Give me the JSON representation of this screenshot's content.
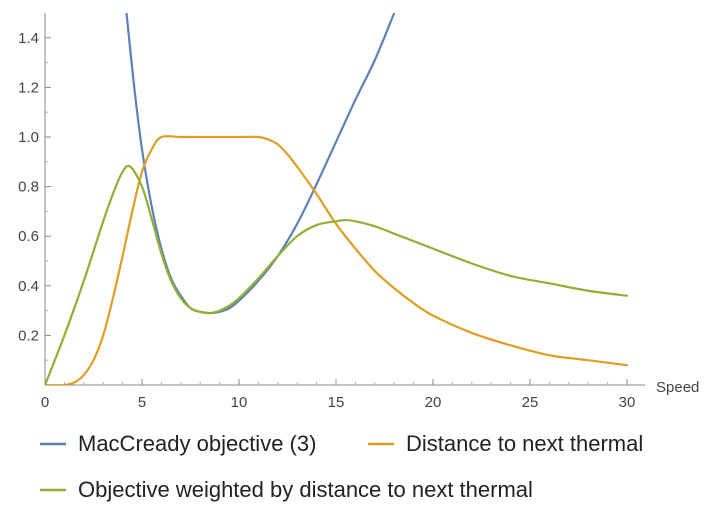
{
  "chart_data": {
    "type": "line",
    "title": "",
    "xlabel": "Speed",
    "ylabel": "",
    "xlim": [
      0,
      30
    ],
    "ylim": [
      0,
      1.5
    ],
    "x_ticks": [
      "0",
      "5",
      "10",
      "15",
      "20",
      "25",
      "30"
    ],
    "y_ticks": [
      "0.2",
      "0.4",
      "0.6",
      "0.8",
      "1.0",
      "1.2",
      "1.4"
    ],
    "grid": false,
    "legend_position": "bottom",
    "series": [
      {
        "name": "MacCready objective (3)",
        "color": "#5e81b5",
        "x": [
          4.2,
          4.6,
          5.0,
          5.5,
          6.0,
          6.5,
          7.0,
          7.5,
          8.0,
          8.5,
          9.0,
          9.5,
          10.0,
          11.0,
          12.0,
          13.0,
          14.0,
          15.0,
          16.0,
          17.0,
          18.0
        ],
        "y": [
          1.5,
          1.2,
          0.95,
          0.72,
          0.55,
          0.43,
          0.36,
          0.31,
          0.295,
          0.29,
          0.295,
          0.31,
          0.34,
          0.42,
          0.52,
          0.65,
          0.81,
          0.98,
          1.15,
          1.31,
          1.5
        ]
      },
      {
        "name": "Distance to next thermal",
        "color": "#e19c24",
        "x": [
          0,
          1,
          1.5,
          2,
          2.5,
          3,
          3.5,
          4,
          4.5,
          5,
          5.5,
          6,
          7,
          8,
          9,
          10,
          11,
          11.5,
          12,
          12.5,
          13,
          14,
          15,
          16,
          17,
          18,
          19,
          20,
          22,
          24,
          26,
          28,
          30
        ],
        "y": [
          0,
          0.0,
          0.01,
          0.04,
          0.1,
          0.2,
          0.35,
          0.52,
          0.7,
          0.86,
          0.95,
          1.0,
          1.0,
          1.0,
          1.0,
          1.0,
          1.0,
          0.99,
          0.97,
          0.93,
          0.88,
          0.77,
          0.65,
          0.55,
          0.46,
          0.39,
          0.33,
          0.28,
          0.21,
          0.16,
          0.12,
          0.1,
          0.08
        ]
      },
      {
        "name": "Objective weighted by distance to next thermal",
        "color": "#8fb032",
        "x": [
          0,
          1,
          2,
          3,
          3.5,
          4,
          4.4,
          5,
          5.5,
          6,
          6.5,
          7,
          7.5,
          8,
          8.5,
          9,
          9.5,
          10,
          11,
          12,
          13,
          14,
          15,
          15.5,
          16,
          17,
          18,
          19,
          20,
          22,
          24,
          26,
          28,
          30
        ],
        "y": [
          0,
          0.2,
          0.42,
          0.66,
          0.77,
          0.86,
          0.88,
          0.8,
          0.67,
          0.53,
          0.42,
          0.35,
          0.31,
          0.295,
          0.29,
          0.3,
          0.32,
          0.35,
          0.43,
          0.52,
          0.6,
          0.645,
          0.66,
          0.665,
          0.66,
          0.64,
          0.61,
          0.58,
          0.55,
          0.49,
          0.44,
          0.41,
          0.38,
          0.36
        ]
      }
    ]
  }
}
